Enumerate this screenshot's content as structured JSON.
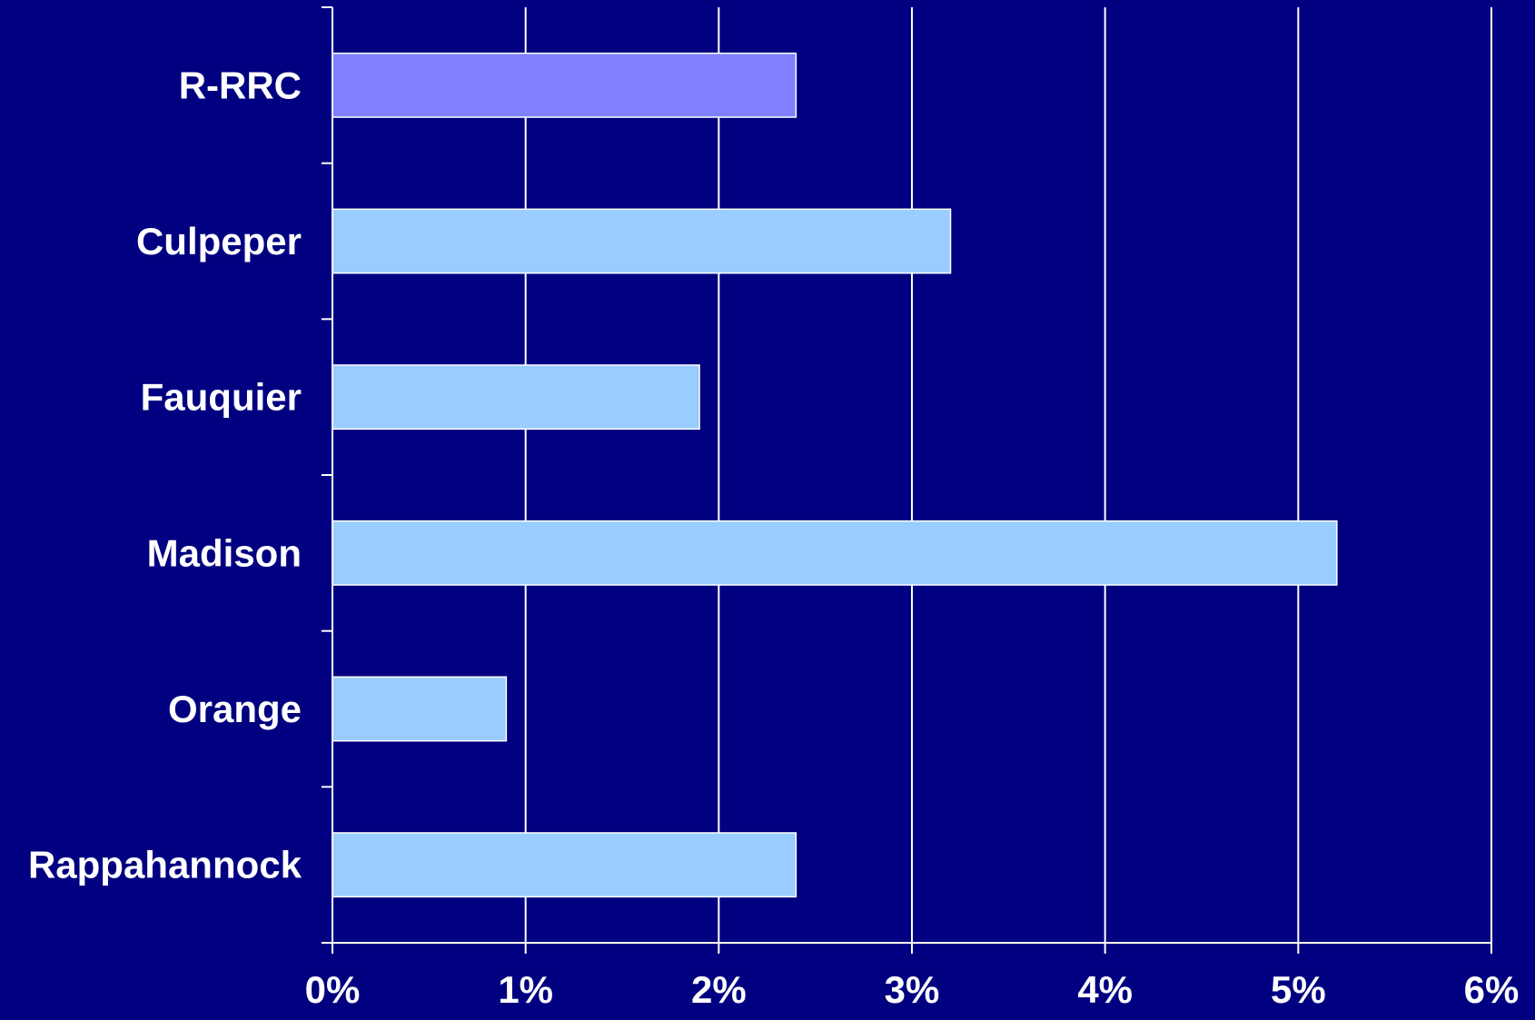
{
  "chart_data": {
    "type": "bar",
    "orientation": "horizontal",
    "categories": [
      "R-RRC",
      "Culpeper",
      "Fauquier",
      "Madison",
      "Orange",
      "Rappahannock"
    ],
    "values": [
      2.4,
      3.2,
      1.9,
      5.2,
      0.9,
      2.4
    ],
    "xlim": [
      0,
      6
    ],
    "x_ticks": [
      "0%",
      "1%",
      "2%",
      "3%",
      "4%",
      "5%",
      "6%"
    ],
    "title": "",
    "xlabel": "",
    "ylabel": "",
    "grid": "vertical",
    "legend": "none",
    "colors": {
      "background": "#000080",
      "highlight_bar": "#8080FF",
      "bar": "#99CCFF",
      "axis": "#FFFFFF",
      "text": "#FFFFFF"
    },
    "highlight_index": 0
  }
}
